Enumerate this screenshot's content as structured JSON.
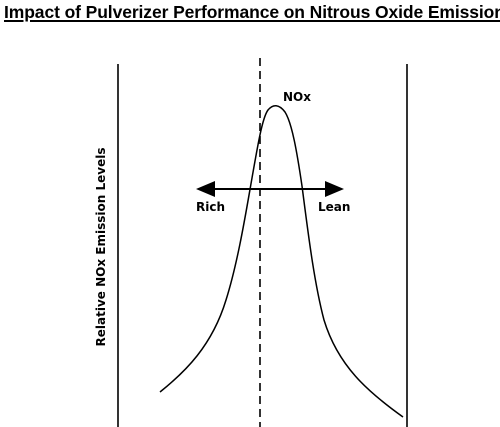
{
  "chart_data": {
    "type": "line",
    "title": "Impact of Pulverizer Performance on Nitrous Oxide Emissions",
    "xlabel": "",
    "ylabel": "Relative NOx Emission Levels",
    "series": [
      {
        "name": "NOx"
      }
    ],
    "annotations": {
      "left_arrow_label": "Rich",
      "right_arrow_label": "Lean"
    },
    "reference_line": "dashed vertical",
    "grid": false
  }
}
